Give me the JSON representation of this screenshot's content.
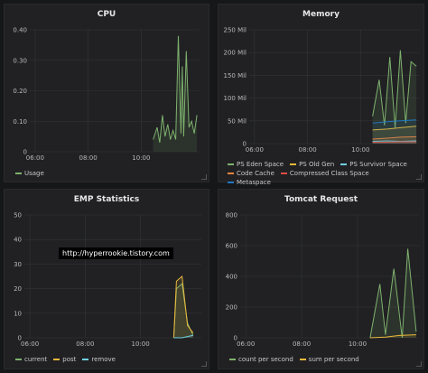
{
  "panels": [
    {
      "title": "CPU"
    },
    {
      "title": "Memory"
    },
    {
      "title": "EMP Statistics"
    },
    {
      "title": "Tomcat Request"
    }
  ],
  "watermark": "http://hyperrookie.tistory.com",
  "chart_data": [
    {
      "type": "line",
      "title": "CPU",
      "ylim": [
        0,
        0.4
      ],
      "yticks": [
        "0",
        "0.10",
        "0.20",
        "0.30",
        "0.40"
      ],
      "xticks": [
        "06:00",
        "08:00",
        "10:00"
      ],
      "xlim": [
        5.8,
        12.2
      ],
      "series": [
        {
          "name": "Usage",
          "color": "#7eb26d",
          "x": [
            10.45,
            10.6,
            10.7,
            10.8,
            10.9,
            11.0,
            11.1,
            11.2,
            11.3,
            11.4,
            11.5,
            11.55,
            11.6,
            11.7,
            11.8,
            11.9,
            12.0,
            12.1
          ],
          "y": [
            0.04,
            0.08,
            0.03,
            0.12,
            0.05,
            0.09,
            0.04,
            0.07,
            0.04,
            0.38,
            0.06,
            0.28,
            0.05,
            0.33,
            0.08,
            0.1,
            0.06,
            0.12
          ]
        }
      ]
    },
    {
      "type": "line",
      "title": "Memory",
      "ylim": [
        0,
        250
      ],
      "yticks": [
        "0",
        "50 Mil",
        "100 Mil",
        "150 Mil",
        "200 Mil",
        "250 Mil"
      ],
      "xticks": [
        "06:00",
        "08:00",
        "10:00"
      ],
      "xlim": [
        5.8,
        12.2
      ],
      "series": [
        {
          "name": "PS Eden Space",
          "color": "#7eb26d",
          "x": [
            10.45,
            10.7,
            10.9,
            11.1,
            11.3,
            11.5,
            11.7,
            11.9,
            12.1
          ],
          "y": [
            60,
            140,
            40,
            190,
            35,
            205,
            45,
            180,
            170
          ]
        },
        {
          "name": "PS Old Gen",
          "color": "#eab839",
          "x": [
            10.45,
            11.0,
            11.5,
            12.1
          ],
          "y": [
            30,
            32,
            35,
            38
          ]
        },
        {
          "name": "PS Survivor Space",
          "color": "#6ed0e0",
          "x": [
            10.45,
            11.0,
            11.5,
            12.1
          ],
          "y": [
            5,
            6,
            5,
            6
          ]
        },
        {
          "name": "Code Cache",
          "color": "#ef843c",
          "x": [
            10.45,
            11.0,
            11.5,
            12.1
          ],
          "y": [
            10,
            12,
            14,
            15
          ]
        },
        {
          "name": "Compressed Class Space",
          "color": "#e24d42",
          "x": [
            10.45,
            11.0,
            11.5,
            12.1
          ],
          "y": [
            3,
            3,
            4,
            4
          ]
        },
        {
          "name": "Metaspace",
          "color": "#1f78c1",
          "x": [
            10.45,
            11.0,
            11.5,
            12.1
          ],
          "y": [
            45,
            48,
            50,
            52
          ]
        }
      ]
    },
    {
      "type": "line",
      "title": "EMP Statistics",
      "ylim": [
        0,
        50
      ],
      "yticks": [
        "0",
        "10",
        "20",
        "30",
        "40",
        "50"
      ],
      "xticks": [
        "06:00",
        "08:00",
        "10:00"
      ],
      "xlim": [
        5.8,
        12.2
      ],
      "series": [
        {
          "name": "current",
          "color": "#7eb26d",
          "x": [
            11.2,
            11.3,
            11.5,
            11.7,
            11.9
          ],
          "y": [
            0,
            20,
            22,
            6,
            1
          ]
        },
        {
          "name": "post",
          "color": "#eab839",
          "x": [
            11.2,
            11.3,
            11.5,
            11.7,
            11.9
          ],
          "y": [
            0,
            23,
            25,
            5,
            2
          ]
        },
        {
          "name": "remove",
          "color": "#6ed0e0",
          "x": [
            11.2,
            11.5,
            11.9
          ],
          "y": [
            0,
            0,
            1
          ]
        }
      ]
    },
    {
      "type": "line",
      "title": "Tomcat Request",
      "ylim": [
        0,
        800
      ],
      "yticks": [
        "0",
        "200",
        "400",
        "600",
        "800"
      ],
      "xticks": [
        "06:00",
        "08:00",
        "10:00"
      ],
      "xlim": [
        5.8,
        12.2
      ],
      "series": [
        {
          "name": "count per second",
          "color": "#7eb26d",
          "x": [
            10.45,
            10.8,
            11.0,
            11.3,
            11.6,
            11.8,
            12.1
          ],
          "y": [
            0,
            350,
            20,
            450,
            0,
            580,
            40
          ]
        },
        {
          "name": "sum per second",
          "color": "#eab839",
          "x": [
            10.45,
            11.0,
            11.5,
            12.1
          ],
          "y": [
            0,
            5,
            15,
            20
          ]
        }
      ]
    }
  ]
}
